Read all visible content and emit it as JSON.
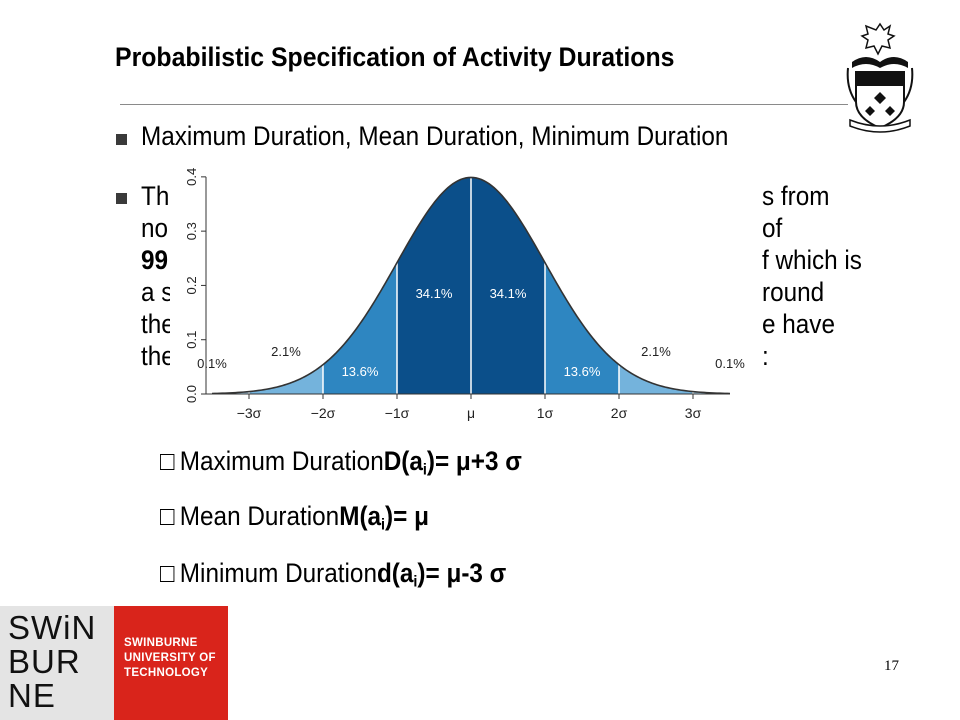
{
  "slide": {
    "title": "Probabilistic Specification of Activity Durations",
    "page_number": "17"
  },
  "bullets": [
    {
      "text": "Maximum Duration, Mean Duration, Minimum Duration"
    },
    {
      "lines": [
        "Th",
        "no",
        "99",
        "a s",
        "the",
        "the"
      ],
      "right_fragments": [
        "s from",
        "of",
        "f which is",
        "round",
        "e have",
        ":"
      ]
    }
  ],
  "sub_bullets": [
    {
      "prefix": "Maximum Duration ",
      "formula_base": "D(a",
      "formula_sub": "i",
      "formula_rest": ")= μ+3 σ"
    },
    {
      "prefix": "Mean Duration ",
      "formula_base": "M(a",
      "formula_sub": "i",
      "formula_rest": ")= μ"
    },
    {
      "prefix": "Minimum Duration ",
      "formula_base": "d(a",
      "formula_sub": "i",
      "formula_rest": ")= μ-3 σ"
    }
  ],
  "logo": {
    "wordmark": [
      "SWiN",
      "BUR",
      "NE"
    ],
    "university": [
      "SWINBURNE",
      "UNIVERSITY OF",
      "TECHNOLOGY"
    ]
  },
  "crest_icon": "university-crest-icon",
  "chart_data": {
    "type": "area",
    "x_tick_labels": [
      "−3σ",
      "−2σ",
      "−1σ",
      "μ",
      "1σ",
      "2σ",
      "3σ"
    ],
    "y_ticks": [
      0.0,
      0.1,
      0.2,
      0.3,
      0.4
    ],
    "y_tick_labels": [
      "0.0",
      "0.1",
      "0.2",
      "0.3",
      "0.4"
    ],
    "xlim": [
      -3.5,
      3.5
    ],
    "ylim": [
      0,
      0.42
    ],
    "region_labels": [
      {
        "x": -3.5,
        "label": "0.1%"
      },
      {
        "x": -2.5,
        "label": "2.1%"
      },
      {
        "x": -1.5,
        "label": "13.6%"
      },
      {
        "x": -0.5,
        "label": "34.1%"
      },
      {
        "x": 0.5,
        "label": "34.1%"
      },
      {
        "x": 1.5,
        "label": "13.6%"
      },
      {
        "x": 2.5,
        "label": "2.1%"
      },
      {
        "x": 3.5,
        "label": "0.1%"
      }
    ],
    "colors": {
      "inner": "#0b4f8a",
      "middle": "#2e86c1",
      "outer": "#74b3dc",
      "tail": "#a9d0ea",
      "curve": "#333333"
    }
  }
}
